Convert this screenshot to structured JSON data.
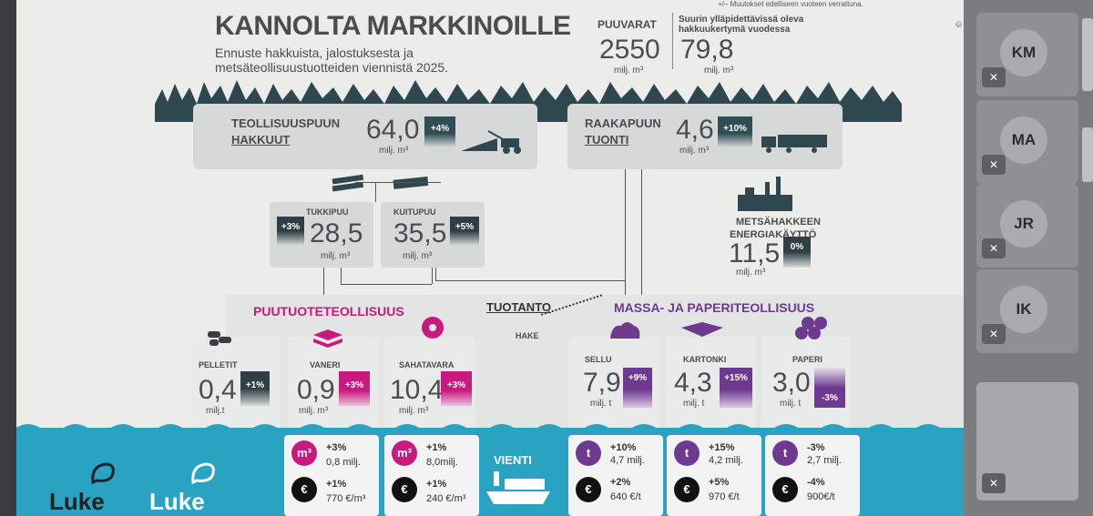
{
  "header": {
    "title": "KANNOLTA MARKKINOILLE",
    "subtitle": "Ennuste hakkuista, jalostuksesta ja metsäteollisuustuotteiden viennistä 2025.",
    "note": "+/– Muutokset edelliseen vuoteen verrattuna.",
    "copyright": "© Luke",
    "puuvarat_label": "PUUVARAT",
    "puuvarat_value": "2550",
    "puuvarat_unit": "milj. m³",
    "yllapidettava_label": "Suurin ylläpidettävissä oleva hakkuukertymä vuodessa",
    "yllapidettava_value": "79,8",
    "yllapidettava_unit": "milj. m³"
  },
  "harvest": {
    "label_line1": "TEOLLISUUSPUUN",
    "label_line2": "HAKKUUT",
    "value": "64,0",
    "unit": "milj. m³",
    "change": "+4%"
  },
  "import": {
    "label_line1": "RAAKAPUUN",
    "label_line2": "TUONTI",
    "value": "4,6",
    "unit": "milj. m³",
    "change": "+10%"
  },
  "tukkipuu": {
    "label": "TUKKIPUU",
    "value": "28,5",
    "unit": "milj. m³",
    "change": "+3%"
  },
  "kuitupuu": {
    "label": "KUITUPUU",
    "value": "35,5",
    "unit": "milj. m³",
    "change": "+5%"
  },
  "energy": {
    "label_line1": "METSÄHAKKEEN",
    "label_line2": "ENERGIAKÄYTTÖ",
    "value": "11,5",
    "unit": "milj. m³",
    "change": "0%"
  },
  "middle": {
    "puutuote": "PUUTUOTETEOLLISUUS",
    "tuotanto": "TUOTANTO",
    "hake": "HAKE",
    "massa": "MASSA- JA PAPERITEOLLISUUS"
  },
  "products": {
    "pelletit": {
      "label": "PELLETIT",
      "value": "0,4",
      "unit": "milj.t",
      "change": "+1%"
    },
    "vaneri": {
      "label": "VANERI",
      "value": "0,9",
      "unit": "milj. m³",
      "change": "+3%"
    },
    "sahatavara": {
      "label": "SAHATAVARA",
      "value": "10,4",
      "unit": "milj. m³",
      "change": "+3%"
    },
    "sellu": {
      "label": "SELLU",
      "value": "7,9",
      "unit": "milj. t",
      "change": "+9%"
    },
    "kartonki": {
      "label": "KARTONKI",
      "value": "4,3",
      "unit": "milj. t",
      "change": "+15%"
    },
    "paperi": {
      "label": "PAPERI",
      "value": "3,0",
      "unit": "milj. t",
      "change": "-3%"
    }
  },
  "export": {
    "vienti": "VIENTI",
    "brand": "Luke",
    "vaneri": {
      "sym_a": "m³",
      "a_pct": "+3%",
      "a_val": "0,8 milj.",
      "sym_b": "€",
      "b_pct": "+1%",
      "b_val": "770 €/m³"
    },
    "sahatavara": {
      "sym_a": "m³",
      "a_pct": "+1%",
      "a_val": "8,0milj.",
      "sym_b": "€",
      "b_pct": "+1%",
      "b_val": "240 €/m³"
    },
    "sellu": {
      "sym_a": "t",
      "a_pct": "+10%",
      "a_val": "4,7 milj.",
      "sym_b": "€",
      "b_pct": "+2%",
      "b_val": "640 €/t"
    },
    "kartonki": {
      "sym_a": "t",
      "a_pct": "+15%",
      "a_val": "4,2 milj.",
      "sym_b": "€",
      "b_pct": "+5%",
      "b_val": "970 €/t"
    },
    "paperi": {
      "sym_a": "t",
      "a_pct": "-3%",
      "a_val": "2,7 milj.",
      "sym_b": "€",
      "b_pct": "-4%",
      "b_val": "900€/t"
    }
  },
  "participants": [
    {
      "initials": "KM"
    },
    {
      "initials": "MA"
    },
    {
      "initials": "JR"
    },
    {
      "initials": "IK"
    }
  ],
  "colors": {
    "pink": "#c8197f",
    "purple": "#6e3a8f",
    "dark": "#2f3f45",
    "water": "#2aa3c2"
  }
}
